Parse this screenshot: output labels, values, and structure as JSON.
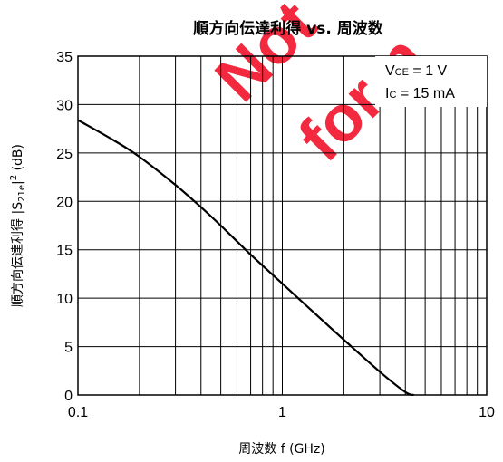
{
  "chart_data": {
    "type": "line",
    "title": "順方向伝達利得 vs. 周波数",
    "xlabel": "周波数  f (GHz)",
    "ylabel_prefix": "順方向伝達利得  |S",
    "ylabel_sub": "21e",
    "ylabel_bar": "|",
    "ylabel_sup": "2",
    "ylabel_suffix": " (dB)",
    "x_scale": "log",
    "xlim": [
      0.1,
      10
    ],
    "ylim": [
      0,
      35
    ],
    "x_ticks": [
      0.1,
      1,
      10
    ],
    "x_tick_labels": [
      "0.1",
      "1",
      "10"
    ],
    "y_ticks": [
      0,
      5,
      10,
      15,
      20,
      25,
      30,
      35
    ],
    "y_tick_labels": [
      "0",
      "5",
      "10",
      "15",
      "20",
      "25",
      "30",
      "35"
    ],
    "grid": true,
    "annotations": [
      {
        "main": "V",
        "sub": "CE",
        "rest": " = 1 V"
      },
      {
        "main": "I",
        "sub": "C",
        "rest": " = 15 mA"
      }
    ],
    "series": [
      {
        "x": [
          0.1,
          0.15,
          0.2,
          0.3,
          0.4,
          0.5,
          0.7,
          1.0,
          1.5,
          2.0,
          3.0,
          4.0,
          4.4
        ],
        "y": [
          28.4,
          26.3,
          24.6,
          21.7,
          19.4,
          17.5,
          14.5,
          11.5,
          8.1,
          5.7,
          2.4,
          0.3,
          0
        ]
      }
    ],
    "line_color": "#000000",
    "watermark": {
      "line1": "Not",
      "line2": "for n",
      "color": "#f2132b"
    }
  }
}
